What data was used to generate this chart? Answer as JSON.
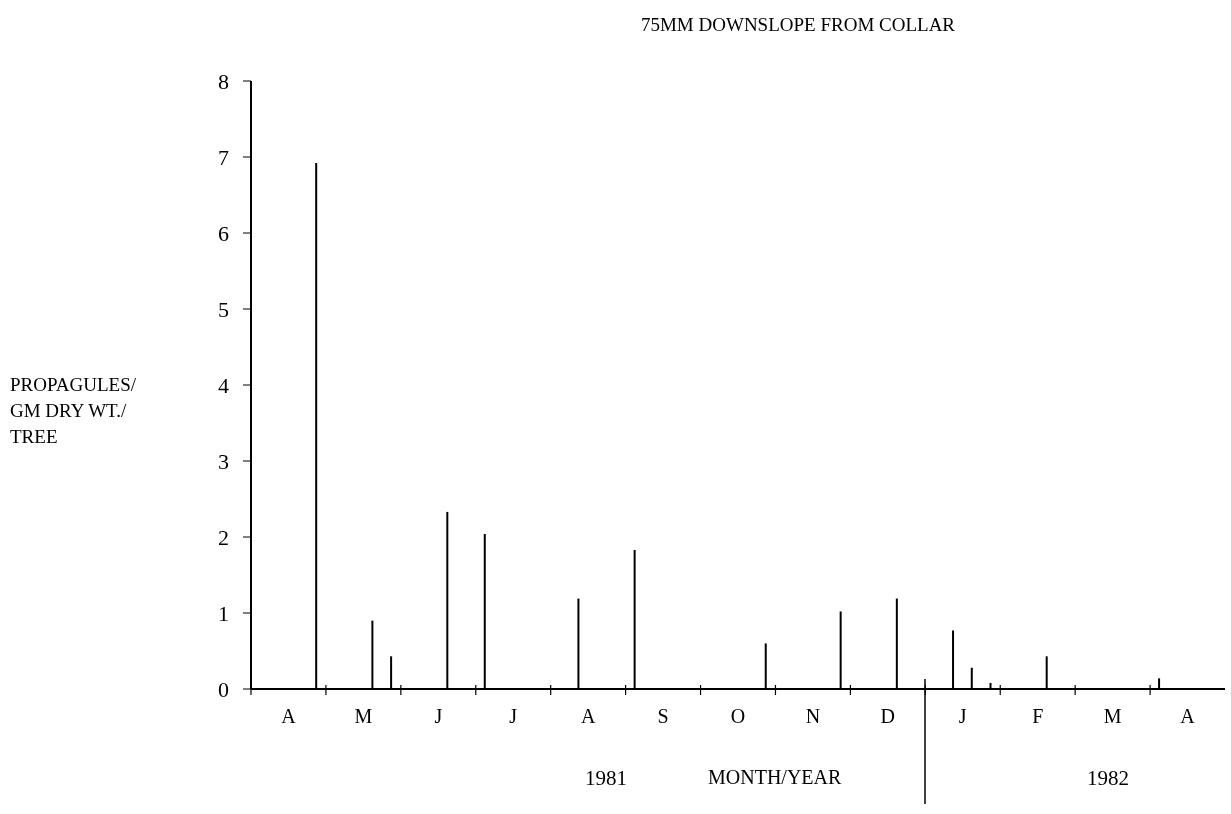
{
  "chart_data": {
    "type": "bar",
    "title": "75MM DOWNSLOPE FROM COLLAR",
    "xlabel": "MONTH/YEAR",
    "ylabel": "PROPAGULES/\nGM DRY WT./\nTREE",
    "annotations": [
      "1981",
      "1982"
    ],
    "categories": [
      null,
      "A",
      null,
      null,
      null,
      "M",
      null,
      null,
      null,
      "J",
      null,
      null,
      null,
      "J",
      null,
      null,
      null,
      "A",
      null,
      null,
      null,
      "S",
      null,
      null,
      null,
      "O",
      null,
      null,
      null,
      "N",
      null,
      null,
      null,
      "D",
      null,
      null,
      null,
      "J",
      null,
      null,
      null,
      "F",
      null,
      null,
      null,
      "M",
      null,
      null,
      null,
      "A",
      null,
      null
    ],
    "values": [
      null,
      null,
      null,
      6.92,
      null,
      null,
      0.9,
      0.43,
      null,
      null,
      2.33,
      null,
      2.04,
      null,
      null,
      null,
      null,
      1.19,
      null,
      null,
      1.83,
      null,
      null,
      null,
      null,
      null,
      null,
      0.6,
      null,
      null,
      null,
      1.02,
      null,
      null,
      1.19,
      null,
      null,
      0.77,
      0.28,
      0.08,
      null,
      null,
      0.43,
      null,
      null,
      null,
      null,
      null,
      0.14,
      null,
      null,
      null
    ],
    "color": "#000000",
    "ylim": [
      0,
      8
    ],
    "yticks": [
      0,
      1,
      2,
      3,
      4,
      5,
      6,
      7,
      8
    ],
    "grid": false
  }
}
